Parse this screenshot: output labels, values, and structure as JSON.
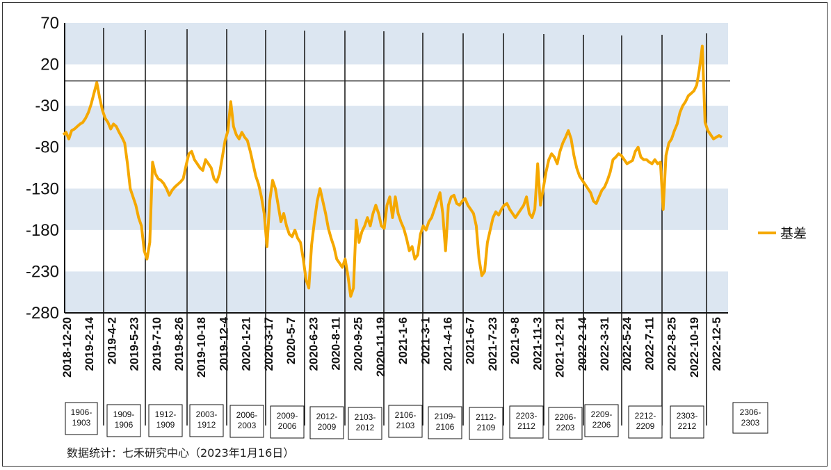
{
  "chart_data": {
    "type": "line",
    "title": "",
    "xlabel": "",
    "ylabel": "",
    "ylim": [
      -280,
      70
    ],
    "yticks": [
      70,
      20,
      -30,
      -80,
      -130,
      -180,
      -230,
      -280
    ],
    "band_color": "#dce6f1",
    "line_color": "#f5a800",
    "x_tick_labels": [
      "2018-12-20",
      "2019-2-14",
      "2019-4-2",
      "2019-5-23",
      "2019-7-10",
      "2019-8-26",
      "2019-10-18",
      "2019-12-4",
      "2020-1-21",
      "2020-3-17",
      "2020-5-7",
      "2020-6-23",
      "2020-8-11",
      "2020-9-25",
      "2020-11-19",
      "2021-1-6",
      "2021-3-1",
      "2021-4-16",
      "2021-6-7",
      "2021-7-23",
      "2021-9-8",
      "2021-11-3",
      "2021-12-21",
      "2022-2-14",
      "2022-3-31",
      "2022-5-24",
      "2022-7-11",
      "2022-8-25",
      "2022-10-19",
      "2022-12-5"
    ],
    "contract_boxes": [
      "1906-\n1903",
      "1909-\n1906",
      "1912-\n1909",
      "2003-\n1912",
      "2006-\n2003",
      "2009-\n2006",
      "2012-\n2009",
      "2103-\n2012",
      "2106-\n2103",
      "2109-\n2106",
      "2112-\n2109",
      "2203-\n2112",
      "2206-\n2203",
      "2209-\n2206",
      "2212-\n2209",
      "2303-\n2212",
      "2306-\n2303"
    ],
    "series": [
      {
        "name": "基差",
        "values": [
          -65,
          -62,
          -70,
          -60,
          -58,
          -55,
          -52,
          -50,
          -45,
          -38,
          -28,
          -15,
          -2,
          -20,
          -35,
          -45,
          -50,
          -58,
          -52,
          -55,
          -62,
          -68,
          -75,
          -100,
          -130,
          -140,
          -150,
          -165,
          -175,
          -205,
          -215,
          -195,
          -98,
          -112,
          -118,
          -120,
          -124,
          -130,
          -138,
          -132,
          -128,
          -125,
          -122,
          -118,
          -102,
          -88,
          -85,
          -95,
          -100,
          -105,
          -108,
          -95,
          -100,
          -105,
          -118,
          -122,
          -112,
          -92,
          -72,
          -60,
          -25,
          -55,
          -65,
          -70,
          -62,
          -68,
          -72,
          -85,
          -100,
          -115,
          -125,
          -140,
          -160,
          -200,
          -145,
          -120,
          -130,
          -150,
          -170,
          -160,
          -175,
          -185,
          -188,
          -180,
          -190,
          -195,
          -215,
          -240,
          -250,
          -198,
          -170,
          -145,
          -130,
          -145,
          -160,
          -178,
          -190,
          -200,
          -215,
          -220,
          -225,
          -215,
          -235,
          -260,
          -250,
          -168,
          -195,
          -182,
          -175,
          -165,
          -175,
          -160,
          -150,
          -160,
          -175,
          -178,
          -150,
          -140,
          -165,
          -140,
          -160,
          -170,
          -178,
          -190,
          -205,
          -200,
          -215,
          -210,
          -185,
          -175,
          -180,
          -170,
          -165,
          -155,
          -145,
          -135,
          -160,
          -205,
          -150,
          -140,
          -138,
          -148,
          -150,
          -145,
          -142,
          -150,
          -155,
          -160,
          -175,
          -215,
          -235,
          -230,
          -195,
          -180,
          -165,
          -158,
          -162,
          -155,
          -150,
          -148,
          -155,
          -160,
          -165,
          -160,
          -155,
          -150,
          -140,
          -160,
          -165,
          -155,
          -100,
          -150,
          -130,
          -110,
          -95,
          -88,
          -92,
          -100,
          -85,
          -75,
          -68,
          -60,
          -70,
          -90,
          -105,
          -115,
          -120,
          -125,
          -130,
          -135,
          -145,
          -148,
          -140,
          -132,
          -128,
          -120,
          -110,
          -95,
          -92,
          -88,
          -90,
          -95,
          -100,
          -98,
          -96,
          -85,
          -80,
          -92,
          -95,
          -95,
          -98,
          -100,
          -95,
          -100,
          -98,
          -155,
          -90,
          -75,
          -70,
          -60,
          -52,
          -38,
          -30,
          -25,
          -18,
          -15,
          -12,
          -5,
          15,
          42,
          -50,
          -60,
          -65,
          -70,
          -68,
          -66,
          -68
        ]
      }
    ]
  },
  "legend": {
    "label": "基差"
  },
  "source_note": "数据统计：七禾研究中心（2023年1月16日）"
}
